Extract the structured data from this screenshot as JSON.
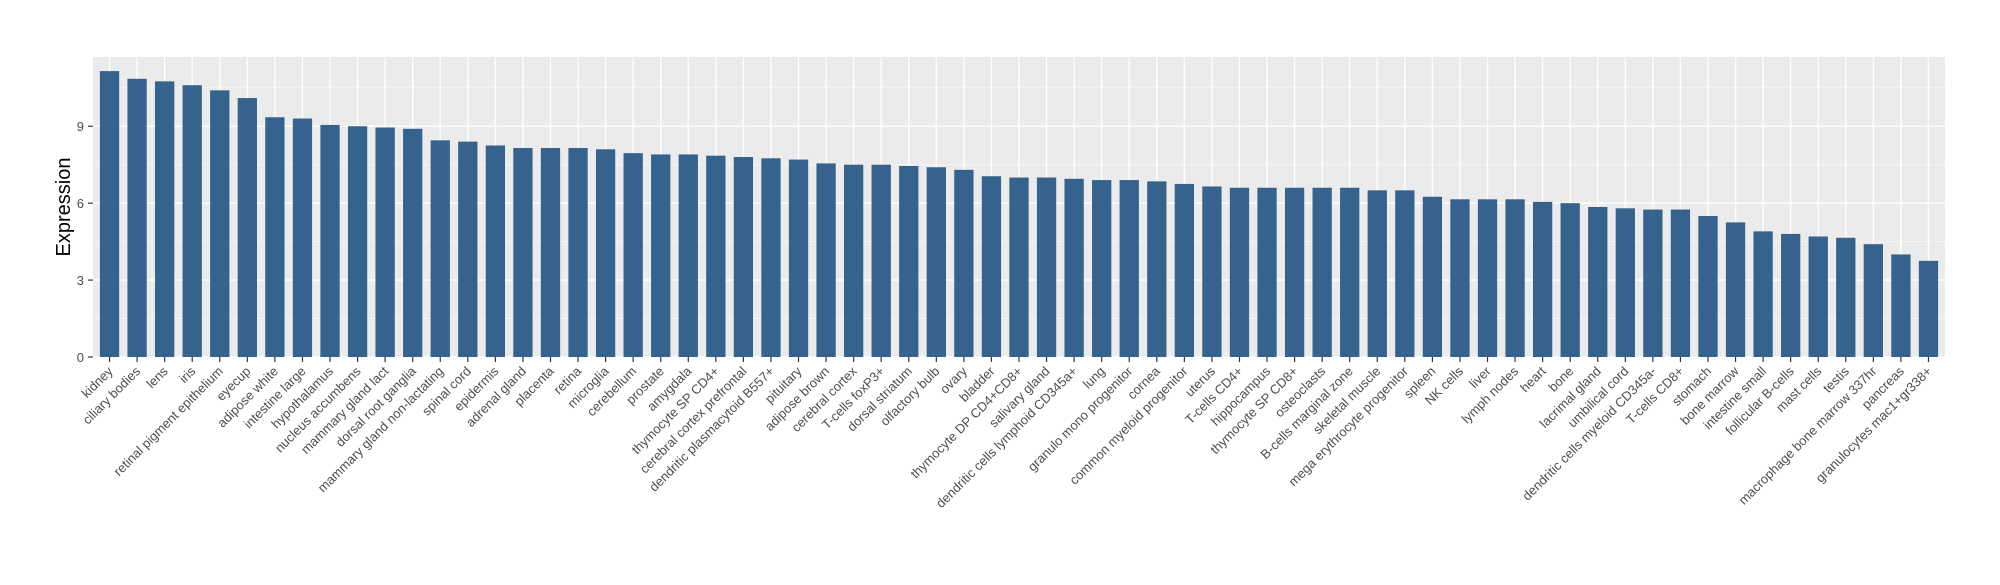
{
  "chart_data": {
    "type": "bar",
    "title": "",
    "xlabel": "",
    "ylabel": "Expression",
    "ylim": [
      0,
      11.7
    ],
    "yticks": [
      0,
      3,
      6,
      9
    ],
    "grid": true,
    "legend": "none",
    "bar_color": "#35638d",
    "panel_color": "#ebebeb",
    "categories": [
      "kidney",
      "ciliary bodies",
      "lens",
      "iris",
      "retinal pigment epithelium",
      "eyecup",
      "adipose white",
      "intestine large",
      "hypothalamus",
      "nucleus accumbens",
      "mammary gland lact",
      "dorsal root ganglia",
      "mammary gland non-lactating",
      "spinal cord",
      "epidermis",
      "adrenal gland",
      "placenta",
      "retina",
      "microglia",
      "cerebellum",
      "prostate",
      "amygdala",
      "thymocyte SP CD4+",
      "cerebral cortex prefrontal",
      "dendritic plasmacytoid B557+",
      "pituitary",
      "adipose brown",
      "cerebral cortex",
      "T-cells foxP3+",
      "dorsal striatum",
      "olfactory bulb",
      "ovary",
      "bladder",
      "thymocyte DP CD4+CD8+",
      "salivary gland",
      "dendritic cells lymphoid CD345a+",
      "lung",
      "granulo mono progenitor",
      "cornea",
      "common myeloid progenitor",
      "uterus",
      "T-cells CD4+",
      "hippocampus",
      "thymocyte SP CD8+",
      "osteoclasts",
      "B-cells marginal zone",
      "skeletal muscle",
      "mega erythrocyte progenitor",
      "spleen",
      "NK cells",
      "liver",
      "lymph nodes",
      "heart",
      "bone",
      "lacrimal gland",
      "umbilical cord",
      "dendritic cells myeloid CD345a-",
      "T-cells CD8+",
      "stomach",
      "bone marrow",
      "intestine small",
      "follicular B-cells",
      "mast cells",
      "testis",
      "macrophage bone marrow 337hr",
      "pancreas",
      "granulocytes mac1+gr338+"
    ],
    "values": [
      11.15,
      10.85,
      10.75,
      10.6,
      10.4,
      10.1,
      9.35,
      9.3,
      9.05,
      9.0,
      8.95,
      8.9,
      8.45,
      8.4,
      8.25,
      8.15,
      8.15,
      8.15,
      8.1,
      7.95,
      7.9,
      7.9,
      7.85,
      7.8,
      7.75,
      7.7,
      7.55,
      7.5,
      7.5,
      7.45,
      7.4,
      7.3,
      7.05,
      7.0,
      7.0,
      6.95,
      6.9,
      6.9,
      6.85,
      6.75,
      6.65,
      6.6,
      6.6,
      6.6,
      6.6,
      6.6,
      6.5,
      6.5,
      6.25,
      6.15,
      6.15,
      6.15,
      6.05,
      6.0,
      5.85,
      5.8,
      5.75,
      5.75,
      5.5,
      5.25,
      4.9,
      4.8,
      4.7,
      4.65,
      4.4,
      4.0,
      3.75
    ]
  }
}
